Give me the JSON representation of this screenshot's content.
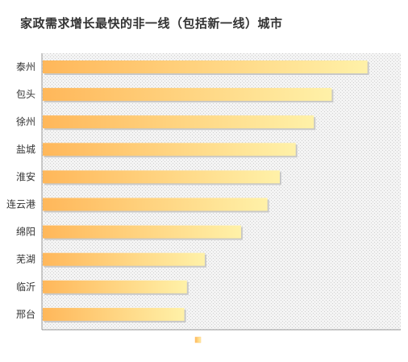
{
  "chart_data": {
    "type": "bar",
    "orientation": "horizontal",
    "title": "家政需求增长最快的非一线（包括新一线）城市",
    "categories": [
      "泰州",
      "包头",
      "徐州",
      "盐城",
      "淮安",
      "连云港",
      "绵阳",
      "芜湖",
      "临沂",
      "邢台"
    ],
    "values": [
      100,
      89,
      83.5,
      77.9,
      73,
      69.2,
      61.1,
      49.9,
      44.4,
      43.6
    ],
    "xlim": [
      0,
      110.5
    ],
    "xlabel": "",
    "ylabel": "",
    "grid": false,
    "legend": {
      "position": "bottom",
      "entries": [
        ""
      ]
    },
    "colors": {
      "bar_start": "#ffb75a",
      "bar_end": "#fff1a8",
      "plot_background": "#f2f2f2",
      "axis": "#999999"
    }
  }
}
